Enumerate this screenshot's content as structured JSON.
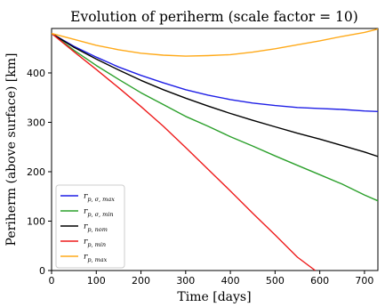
{
  "chart_data": {
    "type": "line",
    "title": "Evolution of periherm (scale factor = 10)",
    "xlabel": "Time [days]",
    "ylabel": "Periherm (above surface) [km]",
    "xlim": [
      0,
      730
    ],
    "ylim": [
      0,
      490
    ],
    "x_ticks": [
      0,
      100,
      200,
      300,
      400,
      500,
      600,
      700
    ],
    "y_ticks": [
      0,
      100,
      200,
      300,
      400
    ],
    "legend_position": "lower-left",
    "grid": false,
    "series": [
      {
        "name": "r_{p,σ,max}",
        "label_main": "r",
        "label_sub": "p, σ, max",
        "color": "#1f1fe6",
        "x": [
          0,
          50,
          100,
          150,
          200,
          250,
          300,
          350,
          400,
          450,
          500,
          550,
          600,
          650,
          700,
          730
        ],
        "y": [
          480,
          454,
          432,
          412,
          395,
          380,
          366,
          355,
          346,
          339,
          334,
          330,
          328,
          326,
          323,
          322
        ]
      },
      {
        "name": "r_{p,σ,min}",
        "label_main": "r",
        "label_sub": "p, σ, min",
        "color": "#2ca02c",
        "x": [
          0,
          50,
          100,
          150,
          200,
          250,
          300,
          350,
          400,
          450,
          500,
          550,
          600,
          650,
          700,
          730
        ],
        "y": [
          480,
          446,
          415,
          387,
          360,
          336,
          312,
          292,
          271,
          252,
          232,
          213,
          194,
          175,
          153,
          141
        ]
      },
      {
        "name": "r_{p,nom}",
        "label_main": "r",
        "label_sub": "p, nom",
        "color": "#000000",
        "x": [
          0,
          50,
          100,
          150,
          200,
          250,
          300,
          350,
          400,
          450,
          500,
          550,
          600,
          650,
          700,
          730
        ],
        "y": [
          480,
          452,
          428,
          406,
          385,
          366,
          349,
          333,
          318,
          304,
          291,
          278,
          266,
          253,
          240,
          231
        ]
      },
      {
        "name": "r_{p,min}",
        "label_main": "r",
        "label_sub": "p, min",
        "color": "#ee1c1c",
        "x": [
          0,
          50,
          100,
          150,
          200,
          250,
          300,
          350,
          400,
          450,
          500,
          550,
          590
        ],
        "y": [
          480,
          443,
          407,
          370,
          332,
          292,
          249,
          205,
          161,
          116,
          72,
          27,
          0
        ]
      },
      {
        "name": "r_{p,max}",
        "label_main": "r",
        "label_sub": "p, max",
        "color": "#ffaa1a",
        "x": [
          0,
          50,
          100,
          150,
          200,
          250,
          300,
          350,
          400,
          450,
          500,
          550,
          600,
          650,
          700,
          730
        ],
        "y": [
          480,
          468,
          456,
          447,
          440,
          436,
          434,
          435,
          437,
          442,
          449,
          457,
          465,
          474,
          482,
          489
        ]
      }
    ]
  }
}
